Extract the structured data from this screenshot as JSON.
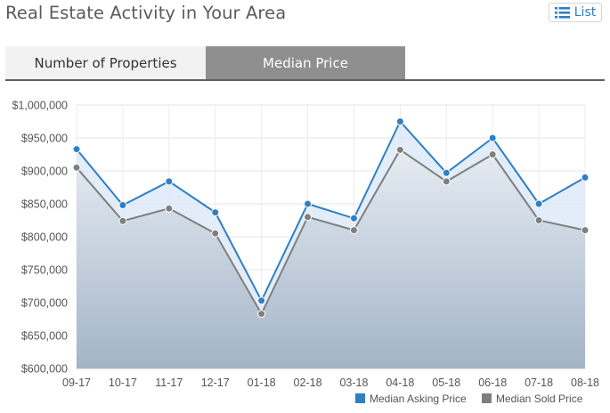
{
  "header": {
    "title": "Real Estate Activity in Your Area",
    "list_label": "List"
  },
  "tabs": [
    {
      "label": "Number of Properties",
      "active": false
    },
    {
      "label": "Median Price",
      "active": true
    }
  ],
  "colors": {
    "asking": "#2f7fc1",
    "sold": "#7f7f7f",
    "list_icon": "#2c7cc6"
  },
  "icons": {
    "list": "list-icon"
  },
  "chart_data": {
    "type": "area",
    "title": "",
    "xlabel": "",
    "ylabel": "",
    "categories": [
      "09-17",
      "10-17",
      "11-17",
      "12-17",
      "01-18",
      "02-18",
      "03-18",
      "04-18",
      "05-18",
      "06-18",
      "07-18",
      "08-18"
    ],
    "ylim": [
      600000,
      1000000
    ],
    "yticks": [
      1000000,
      950000,
      900000,
      850000,
      800000,
      750000,
      700000,
      650000,
      600000
    ],
    "ytick_labels": [
      "$1,000,000",
      "$950,000",
      "$900,000",
      "$850,000",
      "$800,000",
      "$750,000",
      "$700,000",
      "$650,000",
      "$600,000"
    ],
    "grid": true,
    "legend_position": "bottom-right",
    "series": [
      {
        "name": "Median Asking Price",
        "values": [
          933000,
          848000,
          884000,
          837000,
          703000,
          850000,
          828000,
          975000,
          897000,
          950000,
          850000,
          890000
        ]
      },
      {
        "name": "Median Sold Price",
        "values": [
          905000,
          824000,
          843000,
          805000,
          683000,
          830000,
          810000,
          932000,
          884000,
          925000,
          825000,
          810000
        ]
      }
    ]
  }
}
